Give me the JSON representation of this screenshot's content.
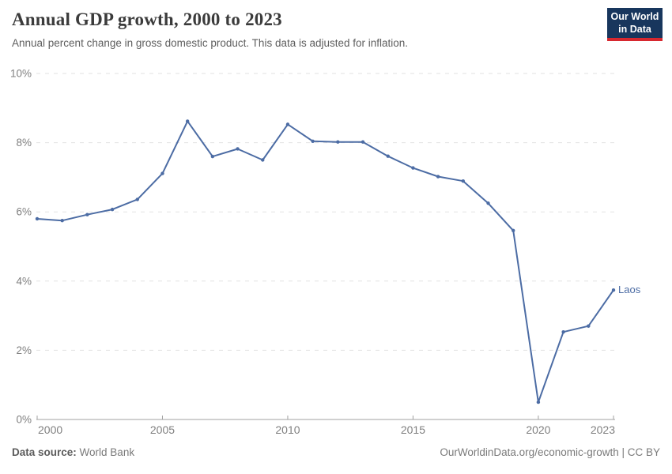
{
  "header": {
    "title": "Annual GDP growth, 2000 to 2023",
    "subtitle": "Annual percent change in gross domestic product. This data is adjusted for inflation.",
    "logo": {
      "line1": "Our World",
      "line2": "in Data"
    }
  },
  "chart_data": {
    "type": "line",
    "title": "Annual GDP growth, 2000 to 2023",
    "xlabel": "",
    "ylabel": "",
    "xlim": [
      2000,
      2023
    ],
    "ylim": [
      0,
      10
    ],
    "x_ticks": [
      2000,
      2005,
      2010,
      2015,
      2020,
      2023
    ],
    "y_ticks": [
      0,
      2,
      4,
      6,
      8,
      10
    ],
    "y_tick_suffix": "%",
    "grid": "horizontal-dashed",
    "legend_position": "end-of-line-label",
    "series": [
      {
        "name": "Laos",
        "color": "#4C6CA4",
        "x": [
          2000,
          2001,
          2002,
          2003,
          2004,
          2005,
          2006,
          2007,
          2008,
          2009,
          2010,
          2011,
          2012,
          2013,
          2014,
          2015,
          2016,
          2017,
          2018,
          2019,
          2020,
          2021,
          2022,
          2023
        ],
        "values": [
          5.8,
          5.75,
          5.92,
          6.07,
          6.36,
          7.11,
          8.62,
          7.6,
          7.82,
          7.5,
          8.53,
          8.04,
          8.02,
          8.02,
          7.61,
          7.27,
          7.02,
          6.89,
          6.25,
          5.46,
          0.5,
          2.53,
          2.7,
          3.74
        ]
      }
    ]
  },
  "footer": {
    "source_label": "Data source:",
    "source_value": "World Bank",
    "attribution": "OurWorldinData.org/economic-growth | CC BY"
  },
  "colors": {
    "line": "#4C6CA4",
    "gridline": "#e2e2e2",
    "axis": "#a0a0a0",
    "tick_text": "#808080",
    "title_text": "#3b3b3b",
    "subtitle_text": "#5e5e5e",
    "logo_bg": "#18365d",
    "logo_red": "#d7282f"
  }
}
